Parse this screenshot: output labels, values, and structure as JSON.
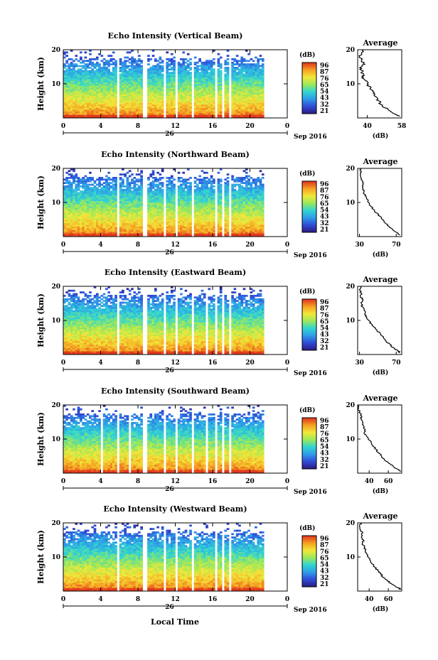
{
  "figure": {
    "date_label": "Sep 2016",
    "day_label": "26",
    "xlabel": "Local Time",
    "avg_title": "Average",
    "avg_unit": "(dB)",
    "ylabel": "Height (km)",
    "cbar_unit": "(dB)"
  },
  "chart_data": [
    {
      "type": "heatmap",
      "title": "Echo Intensity (Vertical Beam)",
      "x_ticks": [
        "0",
        "4",
        "8",
        "12",
        "16",
        "20",
        "0"
      ],
      "y_ticks": [
        "20",
        "10"
      ],
      "ylim": [
        0,
        20
      ],
      "xlim": [
        0,
        24
      ],
      "data_end_hour": 21.5,
      "colorbar_ticks": [
        "96",
        "87",
        "76",
        "65",
        "54",
        "43",
        "32",
        "21"
      ],
      "colormap": [
        "#2b1f8a",
        "#2f4fd8",
        "#2f9ee8",
        "#32d6d0",
        "#9be85a",
        "#f2e83a",
        "#f5a323",
        "#e0391e"
      ],
      "gaps_hours": [
        [
          5.8,
          6.1
        ],
        [
          8.6,
          8.9
        ],
        [
          10.8,
          11.1
        ],
        [
          12.0,
          12.3
        ],
        [
          13.7,
          14.0
        ],
        [
          16.2,
          16.5
        ],
        [
          16.9,
          17.2
        ],
        [
          17.7,
          18.0
        ]
      ],
      "average_profile": {
        "xlim": [
          35,
          58
        ],
        "x_ticks": [
          "40",
          "58"
        ],
        "height_km": [
          0.5,
          1,
          2,
          3,
          4,
          5,
          6,
          7,
          8,
          9,
          10,
          11,
          12,
          13,
          14,
          15,
          16,
          17,
          18,
          19,
          20
        ],
        "db": [
          57,
          55,
          52,
          49,
          47,
          46,
          45,
          44,
          43,
          42,
          40,
          39,
          38,
          38,
          37,
          37,
          38,
          37,
          36,
          37,
          38
        ]
      }
    },
    {
      "type": "heatmap",
      "title": "Echo Intensity (Northward Beam)",
      "x_ticks": [
        "0",
        "4",
        "8",
        "12",
        "16",
        "20",
        "0"
      ],
      "y_ticks": [
        "20",
        "10"
      ],
      "ylim": [
        0,
        20
      ],
      "xlim": [
        0,
        24
      ],
      "data_end_hour": 21.5,
      "colorbar_ticks": [
        "96",
        "87",
        "76",
        "65",
        "54",
        "43",
        "32",
        "21"
      ],
      "colormap": [
        "#2b1f8a",
        "#2f4fd8",
        "#2f9ee8",
        "#32d6d0",
        "#9be85a",
        "#f2e83a",
        "#f5a323",
        "#e0391e"
      ],
      "gaps_hours": [
        [
          5.8,
          6.1
        ],
        [
          8.6,
          8.9
        ],
        [
          10.8,
          11.1
        ],
        [
          11.9,
          12.2
        ],
        [
          13.7,
          14.0
        ],
        [
          15.4,
          15.6
        ],
        [
          16.2,
          16.5
        ],
        [
          16.9,
          17.2
        ],
        [
          17.7,
          18.0
        ]
      ],
      "average_profile": {
        "xlim": [
          28,
          76
        ],
        "x_ticks": [
          "30",
          "70"
        ],
        "height_km": [
          0.5,
          1,
          2,
          3,
          4,
          5,
          6,
          7,
          8,
          9,
          10,
          11,
          12,
          13,
          14,
          15,
          16,
          17,
          18,
          19,
          20
        ],
        "db": [
          74,
          72,
          66,
          62,
          58,
          55,
          52,
          48,
          45,
          42,
          40,
          38,
          36,
          35,
          34,
          33,
          34,
          32,
          31,
          32,
          31
        ]
      }
    },
    {
      "type": "heatmap",
      "title": "Echo Intensity (Eastward Beam)",
      "x_ticks": [
        "0",
        "4",
        "8",
        "12",
        "16",
        "20",
        "0"
      ],
      "y_ticks": [
        "20",
        "10"
      ],
      "ylim": [
        0,
        20
      ],
      "xlim": [
        0,
        24
      ],
      "data_end_hour": 21.5,
      "colorbar_ticks": [
        "96",
        "87",
        "76",
        "65",
        "54",
        "43",
        "32",
        "21"
      ],
      "colormap": [
        "#2b1f8a",
        "#2f4fd8",
        "#2f9ee8",
        "#32d6d0",
        "#9be85a",
        "#f2e83a",
        "#f5a323",
        "#e0391e"
      ],
      "gaps_hours": [
        [
          5.8,
          6.1
        ],
        [
          8.6,
          8.9
        ],
        [
          10.8,
          11.1
        ],
        [
          12.0,
          12.3
        ],
        [
          13.7,
          14.0
        ],
        [
          15.3,
          15.5
        ],
        [
          16.2,
          16.5
        ],
        [
          16.9,
          17.2
        ],
        [
          17.7,
          18.0
        ]
      ],
      "average_profile": {
        "xlim": [
          28,
          76
        ],
        "x_ticks": [
          "30",
          "70"
        ],
        "height_km": [
          0.5,
          1,
          2,
          3,
          4,
          5,
          6,
          7,
          8,
          9,
          10,
          11,
          12,
          13,
          14,
          15,
          16,
          17,
          18,
          19,
          20
        ],
        "db": [
          74,
          72,
          67,
          63,
          59,
          56,
          53,
          49,
          46,
          43,
          40,
          38,
          36,
          35,
          33,
          32,
          34,
          31,
          32,
          30,
          31
        ]
      }
    },
    {
      "type": "heatmap",
      "title": "Echo Intensity (Southward Beam)",
      "x_ticks": [
        "0",
        "4",
        "8",
        "12",
        "16",
        "20",
        "0"
      ],
      "y_ticks": [
        "20",
        "10"
      ],
      "ylim": [
        0,
        20
      ],
      "xlim": [
        0,
        24
      ],
      "data_end_hour": 21.5,
      "colorbar_ticks": [
        "96",
        "87",
        "76",
        "65",
        "54",
        "43",
        "32",
        "21"
      ],
      "colormap": [
        "#2b1f8a",
        "#2f4fd8",
        "#2f9ee8",
        "#32d6d0",
        "#9be85a",
        "#f2e83a",
        "#f5a323",
        "#e0391e"
      ],
      "gaps_hours": [
        [
          4.1,
          4.3
        ],
        [
          5.8,
          6.1
        ],
        [
          7.0,
          7.3
        ],
        [
          8.6,
          8.9
        ],
        [
          10.8,
          11.1
        ],
        [
          12.0,
          12.3
        ],
        [
          13.7,
          14.0
        ],
        [
          15.2,
          15.6
        ],
        [
          16.2,
          16.5
        ],
        [
          16.9,
          17.2
        ],
        [
          17.7,
          18.0
        ]
      ],
      "average_profile": {
        "xlim": [
          28,
          74
        ],
        "x_ticks": [
          "40",
          "60"
        ],
        "height_km": [
          0.5,
          1,
          2,
          3,
          4,
          5,
          6,
          7,
          8,
          9,
          10,
          11,
          12,
          13,
          14,
          15,
          16,
          17,
          18,
          19,
          20
        ],
        "db": [
          73,
          71,
          65,
          60,
          56,
          53,
          50,
          47,
          44,
          42,
          39,
          37,
          35,
          35,
          34,
          33,
          32,
          31,
          30,
          29,
          29
        ]
      }
    },
    {
      "type": "heatmap",
      "title": "Echo Intensity (Westward Beam)",
      "x_ticks": [
        "0",
        "4",
        "8",
        "12",
        "16",
        "20",
        "0"
      ],
      "y_ticks": [
        "20",
        "10"
      ],
      "ylim": [
        0,
        20
      ],
      "xlim": [
        0,
        24
      ],
      "data_end_hour": 21.5,
      "colorbar_ticks": [
        "96",
        "87",
        "76",
        "65",
        "54",
        "43",
        "32",
        "21"
      ],
      "colormap": [
        "#2b1f8a",
        "#2f4fd8",
        "#2f9ee8",
        "#32d6d0",
        "#9be85a",
        "#f2e83a",
        "#f5a323",
        "#e0391e"
      ],
      "gaps_hours": [
        [
          5.8,
          6.1
        ],
        [
          8.6,
          8.9
        ],
        [
          10.8,
          11.1
        ],
        [
          12.0,
          12.3
        ],
        [
          13.7,
          14.0
        ],
        [
          16.2,
          16.5
        ],
        [
          16.9,
          17.2
        ],
        [
          17.7,
          18.0
        ]
      ],
      "average_profile": {
        "xlim": [
          28,
          74
        ],
        "x_ticks": [
          "40",
          "60"
        ],
        "height_km": [
          0.5,
          1,
          2,
          3,
          4,
          5,
          6,
          7,
          8,
          9,
          10,
          11,
          12,
          13,
          14,
          15,
          16,
          17,
          18,
          19,
          20
        ],
        "db": [
          73,
          70,
          64,
          59,
          55,
          52,
          49,
          46,
          43,
          41,
          39,
          37,
          36,
          35,
          33,
          34,
          32,
          33,
          31,
          30,
          31
        ]
      }
    }
  ]
}
